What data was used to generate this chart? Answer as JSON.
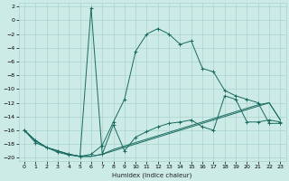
{
  "xlabel": "Humidex (Indice chaleur)",
  "ylabel": "",
  "bg_color": "#cceae6",
  "grid_color": "#aad4cf",
  "line_color": "#1a6b60",
  "xlim": [
    -0.5,
    23.5
  ],
  "ylim": [
    -20.5,
    2.5
  ],
  "xticks": [
    0,
    1,
    2,
    3,
    4,
    5,
    6,
    7,
    8,
    9,
    10,
    11,
    12,
    13,
    14,
    15,
    16,
    17,
    18,
    19,
    20,
    21,
    22,
    23
  ],
  "yticks": [
    2,
    0,
    -2,
    -4,
    -6,
    -8,
    -10,
    -12,
    -14,
    -16,
    -18,
    -20
  ],
  "line1_x": [
    0,
    1,
    2,
    3,
    4,
    5,
    6,
    7,
    8,
    9,
    10,
    11,
    12,
    13,
    14,
    15,
    16,
    17,
    18,
    19,
    20,
    21,
    22,
    23
  ],
  "line1_y": [
    -16.0,
    -17.8,
    -18.5,
    -19.2,
    -19.6,
    -19.8,
    1.8,
    -19.5,
    -15.2,
    -19.0,
    -17.0,
    -16.2,
    -15.5,
    -15.0,
    -14.8,
    -14.5,
    -15.5,
    -16.0,
    -11.0,
    -11.5,
    -14.8,
    -14.8,
    -14.5,
    -14.8
  ],
  "line2_x": [
    0,
    1,
    2,
    3,
    4,
    5,
    6,
    7,
    8,
    9,
    10,
    11,
    12,
    13,
    14,
    15,
    16,
    17,
    18,
    19,
    20,
    21,
    22,
    23
  ],
  "line2_y": [
    -16.0,
    -17.5,
    -18.5,
    -19.0,
    -19.5,
    -19.8,
    -19.8,
    -19.5,
    -19.0,
    -18.5,
    -18.0,
    -17.5,
    -17.0,
    -16.5,
    -16.0,
    -15.5,
    -15.0,
    -14.5,
    -14.0,
    -13.5,
    -13.0,
    -12.5,
    -12.0,
    -14.5
  ],
  "line3_x": [
    0,
    1,
    2,
    3,
    4,
    5,
    6,
    7,
    8,
    9,
    10,
    11,
    12,
    13,
    14,
    15,
    16,
    17,
    18,
    19,
    20,
    21,
    22,
    23
  ],
  "line3_y": [
    -16.0,
    -17.5,
    -18.5,
    -19.0,
    -19.5,
    -19.8,
    -19.5,
    -18.2,
    -14.8,
    -11.5,
    -4.5,
    -2.0,
    -1.2,
    -2.0,
    -3.5,
    -3.0,
    -7.0,
    -7.5,
    -10.2,
    -11.0,
    -11.5,
    -12.0,
    -15.0,
    -15.0
  ],
  "line4_x": [
    0,
    1,
    2,
    3,
    4,
    5,
    6,
    7,
    8,
    9,
    10,
    11,
    12,
    13,
    14,
    15,
    16,
    17,
    18,
    19,
    20,
    21,
    22,
    23
  ],
  "line4_y": [
    -16.0,
    -17.5,
    -18.5,
    -19.0,
    -19.5,
    -19.8,
    -19.8,
    -19.5,
    -18.8,
    -18.3,
    -17.8,
    -17.3,
    -16.8,
    -16.3,
    -15.8,
    -15.3,
    -14.8,
    -14.3,
    -13.8,
    -13.3,
    -12.8,
    -12.3,
    -12.0,
    -14.5
  ]
}
